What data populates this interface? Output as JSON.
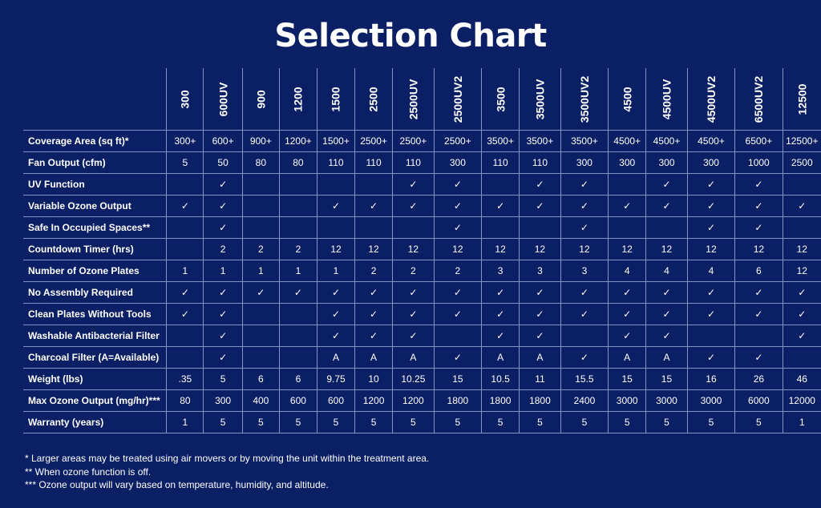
{
  "title": "Selection Chart",
  "models": [
    "300",
    "600UV",
    "900",
    "1200",
    "1500",
    "2500",
    "2500UV",
    "2500UV2",
    "3500",
    "3500UV",
    "3500UV2",
    "4500",
    "4500UV",
    "4500UV2",
    "6500UV2",
    "12500"
  ],
  "rows": [
    {
      "label": "Coverage Area (sq ft)*",
      "values": [
        "300+",
        "600+",
        "900+",
        "1200+",
        "1500+",
        "2500+",
        "2500+",
        "2500+",
        "3500+",
        "3500+",
        "3500+",
        "4500+",
        "4500+",
        "4500+",
        "6500+",
        "12500+"
      ]
    },
    {
      "label": "Fan Output (cfm)",
      "values": [
        "5",
        "50",
        "80",
        "80",
        "110",
        "110",
        "110",
        "300",
        "110",
        "110",
        "300",
        "300",
        "300",
        "300",
        "1000",
        "2500"
      ]
    },
    {
      "label": "UV Function",
      "values": [
        "",
        "✓",
        "",
        "",
        "",
        "",
        "✓",
        "✓",
        "",
        "✓",
        "✓",
        "",
        "✓",
        "✓",
        "✓",
        ""
      ]
    },
    {
      "label": "Variable Ozone Output",
      "values": [
        "✓",
        "✓",
        "",
        "",
        "✓",
        "✓",
        "✓",
        "✓",
        "✓",
        "✓",
        "✓",
        "✓",
        "✓",
        "✓",
        "✓",
        "✓"
      ]
    },
    {
      "label": "Safe In Occupied Spaces**",
      "values": [
        "",
        "✓",
        "",
        "",
        "",
        "",
        "",
        "✓",
        "",
        "",
        "✓",
        "",
        "",
        "✓",
        "✓",
        ""
      ]
    },
    {
      "label": "Countdown Timer (hrs)",
      "values": [
        "",
        "2",
        "2",
        "2",
        "12",
        "12",
        "12",
        "12",
        "12",
        "12",
        "12",
        "12",
        "12",
        "12",
        "12",
        "12"
      ]
    },
    {
      "label": "Number of Ozone Plates",
      "values": [
        "1",
        "1",
        "1",
        "1",
        "1",
        "2",
        "2",
        "2",
        "3",
        "3",
        "3",
        "4",
        "4",
        "4",
        "6",
        "12"
      ]
    },
    {
      "label": "No Assembly Required",
      "values": [
        "✓",
        "✓",
        "✓",
        "✓",
        "✓",
        "✓",
        "✓",
        "✓",
        "✓",
        "✓",
        "✓",
        "✓",
        "✓",
        "✓",
        "✓",
        "✓"
      ]
    },
    {
      "label": "Clean Plates Without Tools",
      "values": [
        "✓",
        "✓",
        "",
        "",
        "✓",
        "✓",
        "✓",
        "✓",
        "✓",
        "✓",
        "✓",
        "✓",
        "✓",
        "✓",
        "✓",
        "✓"
      ]
    },
    {
      "label": "Washable Antibacterial Filter",
      "values": [
        "",
        "✓",
        "",
        "",
        "✓",
        "✓",
        "✓",
        "",
        "✓",
        "✓",
        "",
        "✓",
        "✓",
        "",
        "",
        "✓"
      ]
    },
    {
      "label": "Charcoal Filter  (A=Available)",
      "values": [
        "",
        "✓",
        "",
        "",
        "A",
        "A",
        "A",
        "✓",
        "A",
        "A",
        "✓",
        "A",
        "A",
        "✓",
        "✓",
        ""
      ]
    },
    {
      "label": "Weight (lbs)",
      "values": [
        ".35",
        "5",
        "6",
        "6",
        "9.75",
        "10",
        "10.25",
        "15",
        "10.5",
        "11",
        "15.5",
        "15",
        "15",
        "16",
        "26",
        "46"
      ]
    },
    {
      "label": "Max Ozone Output (mg/hr)***",
      "values": [
        "80",
        "300",
        "400",
        "600",
        "600",
        "1200",
        "1200",
        "1800",
        "1800",
        "1800",
        "2400",
        "3000",
        "3000",
        "3000",
        "6000",
        "12000"
      ]
    },
    {
      "label": "Warranty (years)",
      "values": [
        "1",
        "5",
        "5",
        "5",
        "5",
        "5",
        "5",
        "5",
        "5",
        "5",
        "5",
        "5",
        "5",
        "5",
        "5",
        "1"
      ]
    }
  ],
  "notes": [
    "* Larger areas may be treated using air movers or by moving the unit within the treatment area.",
    "** When ozone function is off.",
    "*** Ozone output will vary based on temperature, humidity, and altitude."
  ],
  "colors": {
    "background": "#0b1f64",
    "grid": "#8593c4",
    "text": "#ffffff"
  }
}
